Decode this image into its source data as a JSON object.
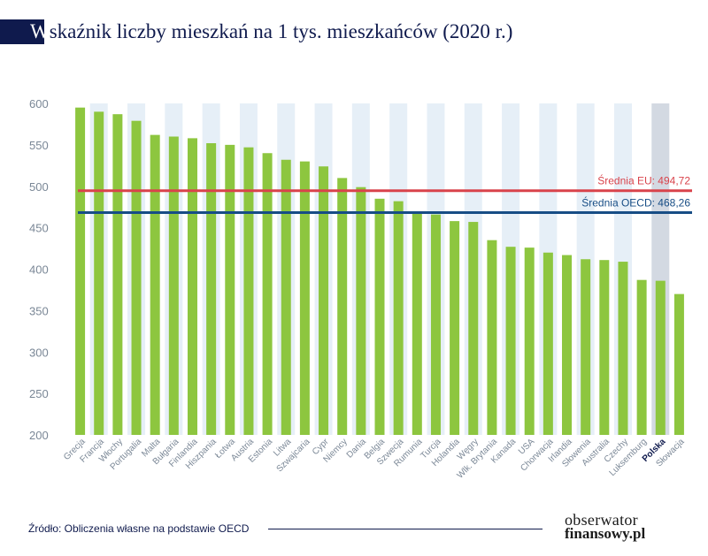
{
  "header": {
    "title_initial": "W",
    "title_rest": "skaźnik liczby mieszkań na 1 tys. mieszkańców (2020 r.)"
  },
  "chart_data": {
    "type": "bar",
    "title": "Wskaźnik liczby mieszkań na 1 tys. mieszkańców (2020 r.)",
    "xlabel": "",
    "ylabel": "",
    "ylim": [
      200,
      600
    ],
    "yticks": [
      200,
      250,
      300,
      350,
      400,
      450,
      500,
      550,
      600
    ],
    "grid": false,
    "categories": [
      "Grecja",
      "Francja",
      "Włochy",
      "Portugalia",
      "Malta",
      "Bułgaria",
      "Finlandia",
      "Hiszpania",
      "Łotwa",
      "Austria",
      "Estonia",
      "Litwa",
      "Szwajcaria",
      "Cypr",
      "Niemcy",
      "Dania",
      "Belgia",
      "Szwecja",
      "Rumunia",
      "Turcja",
      "Holandia",
      "Węgry",
      "Wlk. Brytania",
      "Kanada",
      "USA",
      "Chorwacja",
      "Irlandia",
      "Słowenia",
      "Australia",
      "Czechy",
      "Luksemburg",
      "Polska",
      "Słowacja"
    ],
    "values": [
      595,
      590,
      587,
      579,
      562,
      560,
      558,
      552,
      550,
      547,
      540,
      532,
      530,
      524,
      510,
      499,
      485,
      482,
      469,
      466,
      458,
      457,
      435,
      427,
      426,
      420,
      417,
      412,
      411,
      409,
      387,
      386,
      370
    ],
    "highlight_category": "Polska",
    "reference_lines": [
      {
        "label": "Średnia EU:",
        "value_text": "494,72",
        "value": 494.72,
        "color": "#d9434b"
      },
      {
        "label": "Średnia OECD:",
        "value_text": "468,26",
        "value": 468.26,
        "color": "#174d85"
      }
    ],
    "colors": {
      "bar": "#8dc63f",
      "stripe": "#e6eff7",
      "highlight_stripe": "#d3d9e2",
      "axis_text": "#7a8796",
      "highlight_text": "#0f1a4d"
    }
  },
  "footer": {
    "source": "Źródło: Obliczenia własne na podstawie OECD",
    "logo_line1": "obserwator",
    "logo_line2": "finansowy.pl"
  }
}
